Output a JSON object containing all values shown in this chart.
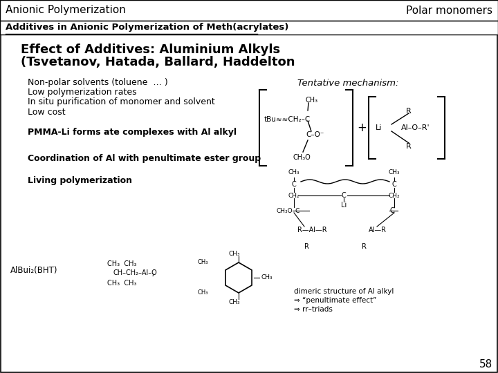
{
  "bg_color": "#ffffff",
  "header_left": "Anionic Polymerization",
  "header_right": "Polar monomers",
  "section_title": "Additives in Anionic Polymerization of Meth(acrylates)",
  "main_title_line1": "Effect of Additives: Aluminium Alkyls",
  "main_title_line2": "(Tsvetanov, Hatada, Ballard, Haddelton",
  "bullet_points": [
    "Non-polar solvents (toluene  … )",
    "Low polymerization rates",
    "In situ purification of monomer and solvent",
    "Low cost"
  ],
  "tentative_label": "Tentative mechanism:",
  "pmma_text": "PMMA-Li forms ate complexes with Al alkyl",
  "coord_text": "Coordination of Al with penultimate ester group",
  "living_text": "Living polymerization",
  "albut_label": "AlBui₂(BHT)",
  "page_number": "58",
  "dimeric_label1": "dimeric structure of Al alkyl",
  "dimeric_label2": "⇒ “penultimate effect”",
  "dimeric_label3": "⇒ rr–triads"
}
